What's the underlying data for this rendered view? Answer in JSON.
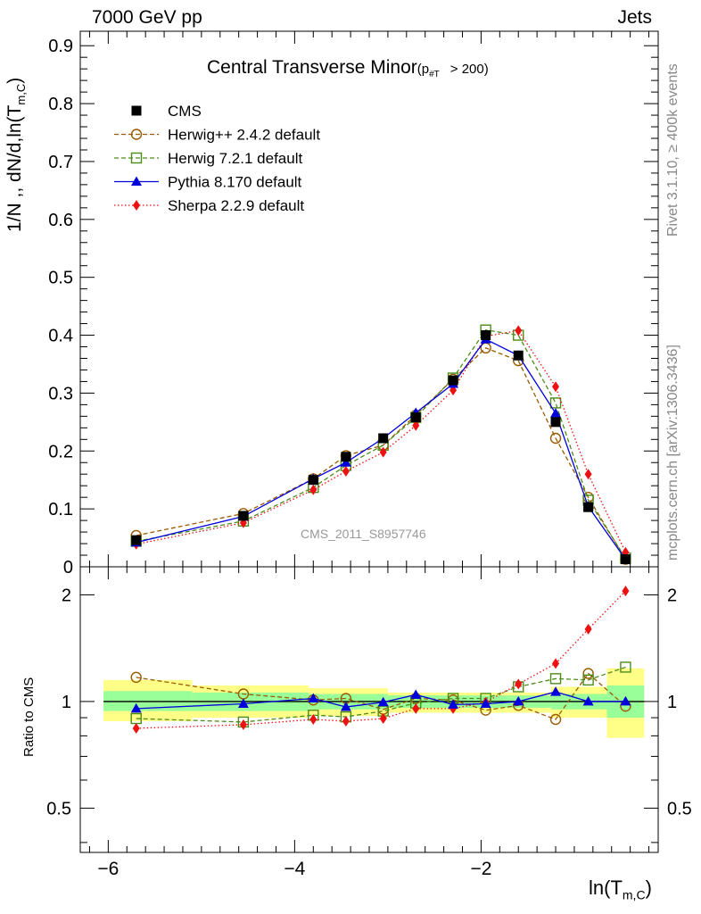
{
  "header": {
    "left": "7000 GeV pp",
    "right": "Jets",
    "title_main": "Central Transverse Minor",
    "title_sub": "(p",
    "title_sub_index": "#T",
    "title_sub_tail": "> 200)",
    "watermark": "CMS_2011_S8957746",
    "side_top": "Rivet 3.1.10, ≥ 400k events",
    "side_bottom": "mcplots.cern.ch [arXiv:1306.3436]"
  },
  "axes": {
    "ylabel": "1/N ,, dN/d,ln(T",
    "ylabel_sub": "m,C",
    "ylabel_tail": ")",
    "xlabel": "ln(T",
    "xlabel_sub": "m,C",
    "xlabel_tail": ")",
    "ratio_ylabel": "Ratio to CMS"
  },
  "colors": {
    "cms": "#000000",
    "herwigpp": "#9a5b00",
    "herwig7": "#4d8c1a",
    "pythia": "#0000dd",
    "sherpa": "#ee1111",
    "band_inner": "#99ff99",
    "band_outer": "#ffff88"
  },
  "chart_data": {
    "type": "line",
    "main": {
      "xlim": [
        -6.3,
        -0.1
      ],
      "ylim": [
        0,
        0.925
      ],
      "y_ticks": [
        0,
        0.1,
        0.2,
        0.3,
        0.4,
        0.5,
        0.6,
        0.7,
        0.8,
        0.9
      ],
      "y_tick_labels": [
        "0",
        "0.1",
        "0.2",
        "0.3",
        "0.4",
        "0.5",
        "0.6",
        "0.7",
        "0.8",
        "0.9"
      ],
      "legend_position": "top-left"
    },
    "ratio": {
      "ylim": [
        0.375,
        2.4
      ],
      "scale": "log",
      "y_ticks": [
        0.5,
        1,
        2
      ],
      "y_tick_labels": [
        "0.5",
        "1",
        "2"
      ]
    },
    "x_ticks": [
      -6,
      -4,
      -2
    ],
    "x_tick_labels": [
      "−6",
      "−4",
      "−2"
    ],
    "x": [
      -5.7,
      -4.55,
      -3.8,
      -3.45,
      -3.05,
      -2.7,
      -2.3,
      -1.95,
      -1.6,
      -1.2,
      -0.85,
      -0.45
    ],
    "cms_values": [
      0.046,
      0.088,
      0.15,
      0.19,
      0.222,
      0.258,
      0.322,
      0.4,
      0.365,
      0.25,
      0.103,
      0.013
    ],
    "series": [
      {
        "name": "CMS",
        "key": "cms",
        "marker": "square-filled",
        "line": "none",
        "values": [
          0.046,
          0.088,
          0.15,
          0.19,
          0.222,
          0.258,
          0.322,
          0.4,
          0.365,
          0.25,
          0.103,
          0.013
        ],
        "ratio": [
          1,
          1,
          1,
          1,
          1,
          1,
          1,
          1,
          1,
          1,
          1,
          1
        ]
      },
      {
        "name": "Herwig++ 2.4.2 default",
        "key": "herwigpp",
        "marker": "circle-open",
        "line": "dashed",
        "values": [
          0.054,
          0.092,
          0.152,
          0.192,
          0.21,
          0.262,
          0.324,
          0.378,
          0.356,
          0.222,
          0.12,
          0.013
        ],
        "ratio": [
          1.17,
          1.05,
          1.01,
          1.02,
          0.95,
          1.02,
          1.01,
          0.945,
          0.975,
          0.89,
          1.2,
          0.97
        ]
      },
      {
        "name": "Herwig 7.2.1 default",
        "key": "herwig7",
        "marker": "square-open",
        "line": "dashed",
        "values": [
          0.044,
          0.079,
          0.137,
          0.175,
          0.21,
          0.258,
          0.326,
          0.409,
          0.4,
          0.283,
          0.115,
          0.015
        ],
        "ratio": [
          0.895,
          0.875,
          0.915,
          0.905,
          0.94,
          0.99,
          1.02,
          1.02,
          1.1,
          1.16,
          1.15,
          1.25
        ]
      },
      {
        "name": "Pythia 8.170 default",
        "key": "pythia",
        "marker": "triangle-filled",
        "line": "solid",
        "values": [
          0.042,
          0.087,
          0.152,
          0.18,
          0.222,
          0.266,
          0.316,
          0.393,
          0.365,
          0.265,
          0.104,
          0.013
        ],
        "ratio": [
          0.955,
          0.985,
          1.02,
          0.965,
          0.995,
          1.045,
          0.98,
          0.985,
          1.0,
          1.065,
          1.0,
          1.0
        ]
      },
      {
        "name": "Sherpa 2.2.9 default",
        "key": "sherpa",
        "marker": "diamond-filled",
        "line": "dotted",
        "values": [
          0.039,
          0.076,
          0.133,
          0.165,
          0.198,
          0.244,
          0.305,
          0.398,
          0.408,
          0.311,
          0.16,
          0.025
        ],
        "ratio": [
          0.84,
          0.86,
          0.89,
          0.88,
          0.895,
          0.955,
          0.955,
          0.995,
          1.12,
          1.28,
          1.6,
          2.05
        ]
      }
    ],
    "ratio_bands": [
      {
        "x0": -6.05,
        "x1": -5.1,
        "inner": [
          0.94,
          1.07
        ],
        "outer": [
          0.88,
          1.15
        ]
      },
      {
        "x0": -5.1,
        "x1": -3.85,
        "inner": [
          0.94,
          1.06
        ],
        "outer": [
          0.9,
          1.11
        ]
      },
      {
        "x0": -3.85,
        "x1": -3.0,
        "inner": [
          0.95,
          1.05
        ],
        "outer": [
          0.91,
          1.09
        ]
      },
      {
        "x0": -3.0,
        "x1": -1.25,
        "inner": [
          0.96,
          1.04
        ],
        "outer": [
          0.93,
          1.06
        ]
      },
      {
        "x0": -1.25,
        "x1": -0.65,
        "inner": [
          0.95,
          1.05
        ],
        "outer": [
          0.9,
          1.1
        ]
      },
      {
        "x0": -0.65,
        "x1": -0.25,
        "inner": [
          0.9,
          1.11
        ],
        "outer": [
          0.79,
          1.24
        ]
      }
    ]
  }
}
